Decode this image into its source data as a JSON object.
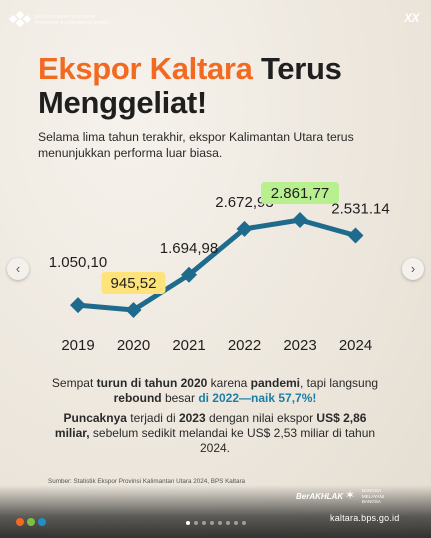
{
  "header": {
    "agency_lines": [
      "BADAN PUSAT STATISTIK",
      "PROVINSI KALIMANTAN UTARA"
    ],
    "right_mark": "XX"
  },
  "title": {
    "part1": "Ekspor Kaltara",
    "part2": "Terus",
    "line2": "Menggeliat!"
  },
  "subtitle": "Selama lima tahun terakhir, ekspor Kalimantan Utara terus menunjukkan performa luar biasa.",
  "chart_data": {
    "type": "line",
    "x": [
      "2019",
      "2020",
      "2021",
      "2022",
      "2023",
      "2024"
    ],
    "values": [
      1050.1,
      945.52,
      1694.98,
      2672.93,
      2861.77,
      2531.14
    ],
    "value_labels": [
      "1.050,10",
      "945,52",
      "1.694,98",
      "2.672,93",
      "2.861,77",
      "2.531.14"
    ],
    "highlighted": {
      "min_index": 1,
      "max_index": 4
    },
    "colors": {
      "line": "#1f6b8d",
      "min_highlight": "#fde37a",
      "max_highlight": "#b8ef8f"
    },
    "grid": false
  },
  "notes": {
    "note1": {
      "a": "Sempat ",
      "b": "turun di tahun 2020",
      "c": " karena ",
      "d": "pandemi",
      "e": ", tapi langsung ",
      "f": "rebound",
      "g": " besar ",
      "h": "di 2022—naik 57,7%!"
    },
    "note2": {
      "a": "Puncaknya",
      "b": " terjadi di ",
      "c": "2023",
      "d": " dengan nilai ekspor ",
      "e": "US$ 2,86 miliar,",
      "f": " sebelum sedikit melandai ke US$ 2,53 miliar di tahun 2024."
    }
  },
  "source": "Sumber: Statistik Ekspor Provinsi Kalimantan Utara 2024, BPS Kaltara",
  "footer": {
    "berakhlak": "BerAKHLAK",
    "bangga_lines": [
      "BANGGA",
      "MELAYANI",
      "BANGSA"
    ],
    "url": "kaltara.bps.go.id"
  },
  "nav": {
    "prev_icon": "chevron-left",
    "next_icon": "chevron-right"
  }
}
